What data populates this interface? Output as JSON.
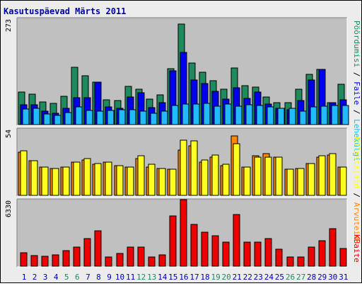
{
  "title": "Kasutuspäevad Märts 2011",
  "colors": {
    "title": "#0000aa",
    "pages": "#1e8a5e",
    "files": "#0000ee",
    "hits": "#22bbff",
    "visits": "#ff8800",
    "sites": "#ffff22",
    "kbytes": "#ee0000",
    "weekend": "#1e8a5e",
    "weekday": "#0000aa"
  },
  "chart_data": [
    {
      "type": "bar",
      "name": "requests",
      "ylabel_max": "273",
      "legend": [
        "Pöördumisi",
        "Faile",
        "Lehekülgi"
      ],
      "categories": [
        "1",
        "2",
        "3",
        "4",
        "5",
        "6",
        "7",
        "8",
        "9",
        "10",
        "11",
        "12",
        "13",
        "14",
        "15",
        "16",
        "17",
        "18",
        "19",
        "20",
        "21",
        "22",
        "23",
        "24",
        "25",
        "26",
        "27",
        "28",
        "29",
        "30",
        "31"
      ],
      "weekend": [
        5,
        6,
        12,
        13,
        19,
        20,
        26,
        27
      ],
      "ylim": [
        0,
        273
      ],
      "series": [
        {
          "name": "Pöördumisi",
          "values": [
            84,
            78,
            58,
            54,
            73,
            148,
            125,
            110,
            63,
            62,
            99,
            91,
            65,
            76,
            143,
            258,
            158,
            134,
            113,
            91,
            146,
            100,
            96,
            71,
            57,
            57,
            91,
            129,
            142,
            56,
            104
          ]
        },
        {
          "name": "Faile",
          "values": [
            51,
            51,
            34,
            30,
            42,
            69,
            69,
            110,
            46,
            42,
            71,
            81,
            43,
            56,
            139,
            185,
            115,
            105,
            86,
            66,
            95,
            68,
            83,
            53,
            42,
            38,
            61,
            114,
            142,
            56,
            63
          ]
        },
        {
          "name": "Lehekülgi",
          "values": [
            40,
            41,
            28,
            24,
            31,
            45,
            36,
            35,
            37,
            39,
            38,
            35,
            29,
            34,
            50,
            52,
            53,
            54,
            48,
            52,
            47,
            51,
            50,
            46,
            41,
            41,
            34,
            46,
            48,
            50,
            50
          ]
        }
      ]
    },
    {
      "type": "bar",
      "name": "visits",
      "ylabel_max": "54",
      "legend": [
        "Kü̈lastajaid",
        "Arvuteid"
      ],
      "categories": [
        "1",
        "2",
        "3",
        "4",
        "5",
        "6",
        "7",
        "8",
        "9",
        "10",
        "11",
        "12",
        "13",
        "14",
        "15",
        "16",
        "17",
        "18",
        "19",
        "20",
        "21",
        "22",
        "23",
        "24",
        "25",
        "26",
        "27",
        "28",
        "29",
        "30",
        "31"
      ],
      "ylim": [
        0,
        54
      ],
      "series": [
        {
          "name": "Külastajaid",
          "values": [
            35,
            28,
            23,
            22,
            23,
            27,
            29,
            25,
            27,
            24,
            23,
            30,
            23,
            22,
            21,
            37,
            40,
            27,
            31,
            24,
            48,
            23,
            32,
            34,
            31,
            21,
            22,
            26,
            31,
            33,
            23
          ]
        },
        {
          "name": "Arvuteid",
          "values": [
            36,
            28,
            23,
            22,
            23,
            27,
            30,
            26,
            27,
            24,
            23,
            32,
            25,
            22,
            21,
            45,
            44,
            29,
            33,
            25,
            42,
            23,
            31,
            31,
            31,
            21,
            22,
            26,
            32,
            34,
            23
          ]
        }
      ]
    },
    {
      "type": "bar",
      "name": "kbytes",
      "ylabel_max": "6330",
      "legend": [
        "KBaite"
      ],
      "categories": [
        "1",
        "2",
        "3",
        "4",
        "5",
        "6",
        "7",
        "8",
        "9",
        "10",
        "11",
        "12",
        "13",
        "14",
        "15",
        "16",
        "17",
        "18",
        "19",
        "20",
        "21",
        "22",
        "23",
        "24",
        "25",
        "26",
        "27",
        "28",
        "29",
        "30",
        "31"
      ],
      "ylim": [
        0,
        6330
      ],
      "series": [
        {
          "name": "KBaite",
          "values": [
            1300,
            1000,
            945,
            1100,
            1500,
            1800,
            2650,
            3400,
            900,
            1200,
            1800,
            1800,
            850,
            1100,
            4800,
            6350,
            3950,
            3250,
            2900,
            2300,
            4900,
            2300,
            2300,
            2650,
            1600,
            850,
            850,
            1800,
            2400,
            3600,
            1650
          ]
        }
      ]
    }
  ]
}
